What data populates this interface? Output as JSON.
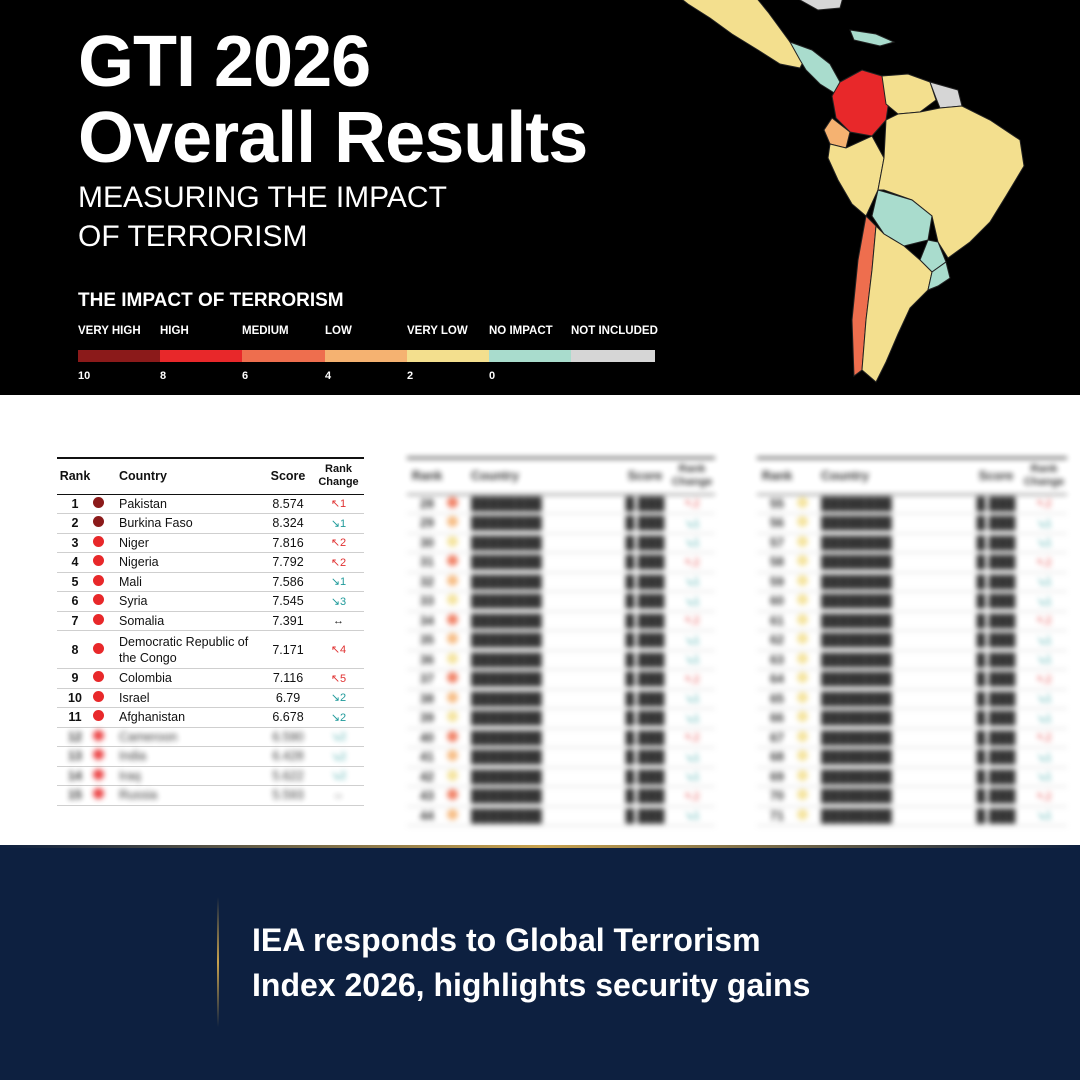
{
  "header": {
    "title_line1": "GTI 2026",
    "title_line2": "Overall Results",
    "subtitle_line1": "MEASURING THE IMPACT",
    "subtitle_line2": "OF TERRORISM"
  },
  "legend": {
    "title": "THE IMPACT OF TERRORISM",
    "items": [
      {
        "label": "VERY HIGH",
        "color": "#8b1a1a"
      },
      {
        "label": "HIGH",
        "color": "#e8282a"
      },
      {
        "label": "MEDIUM",
        "color": "#ee6e4e"
      },
      {
        "label": "LOW",
        "color": "#f5b271"
      },
      {
        "label": "VERY LOW",
        "color": "#f3df8e"
      },
      {
        "label": "NO IMPACT",
        "color": "#a9dccd"
      },
      {
        "label": "NOT INCLUDED",
        "color": "#d6d6d6"
      }
    ],
    "scale": [
      "10",
      "8",
      "6",
      "4",
      "2",
      "0"
    ]
  },
  "table": {
    "headers": {
      "rank": "Rank",
      "country": "Country",
      "score": "Score",
      "change": "Rank Change"
    },
    "rows": [
      {
        "rank": "1",
        "country": "Pakistan",
        "score": "8.574",
        "change": "↖1",
        "dir": "up",
        "color": "#8b1a1a"
      },
      {
        "rank": "2",
        "country": "Burkina Faso",
        "score": "8.324",
        "change": "↘1",
        "dir": "dn",
        "color": "#8b1a1a"
      },
      {
        "rank": "3",
        "country": "Niger",
        "score": "7.816",
        "change": "↖2",
        "dir": "up",
        "color": "#e8282a"
      },
      {
        "rank": "4",
        "country": "Nigeria",
        "score": "7.792",
        "change": "↖2",
        "dir": "up",
        "color": "#e8282a"
      },
      {
        "rank": "5",
        "country": "Mali",
        "score": "7.586",
        "change": "↘1",
        "dir": "dn",
        "color": "#e8282a"
      },
      {
        "rank": "6",
        "country": "Syria",
        "score": "7.545",
        "change": "↘3",
        "dir": "dn",
        "color": "#e8282a"
      },
      {
        "rank": "7",
        "country": "Somalia",
        "score": "7.391",
        "change": "↔",
        "dir": "eq",
        "color": "#e8282a"
      },
      {
        "rank": "8",
        "country": "Democratic Republic of the Congo",
        "score": "7.171",
        "change": "↖4",
        "dir": "up",
        "color": "#e8282a"
      },
      {
        "rank": "9",
        "country": "Colombia",
        "score": "7.116",
        "change": "↖5",
        "dir": "up",
        "color": "#e8282a"
      },
      {
        "rank": "10",
        "country": "Israel",
        "score": "6.79",
        "change": "↘2",
        "dir": "dn",
        "color": "#e8282a"
      },
      {
        "rank": "11",
        "country": "Afghanistan",
        "score": "6.678",
        "change": "↘2",
        "dir": "dn",
        "color": "#e8282a"
      }
    ]
  },
  "bottom": {
    "headline_line1": "IEA responds to Global Terrorism",
    "headline_line2": "Index 2026, highlights security gains"
  }
}
